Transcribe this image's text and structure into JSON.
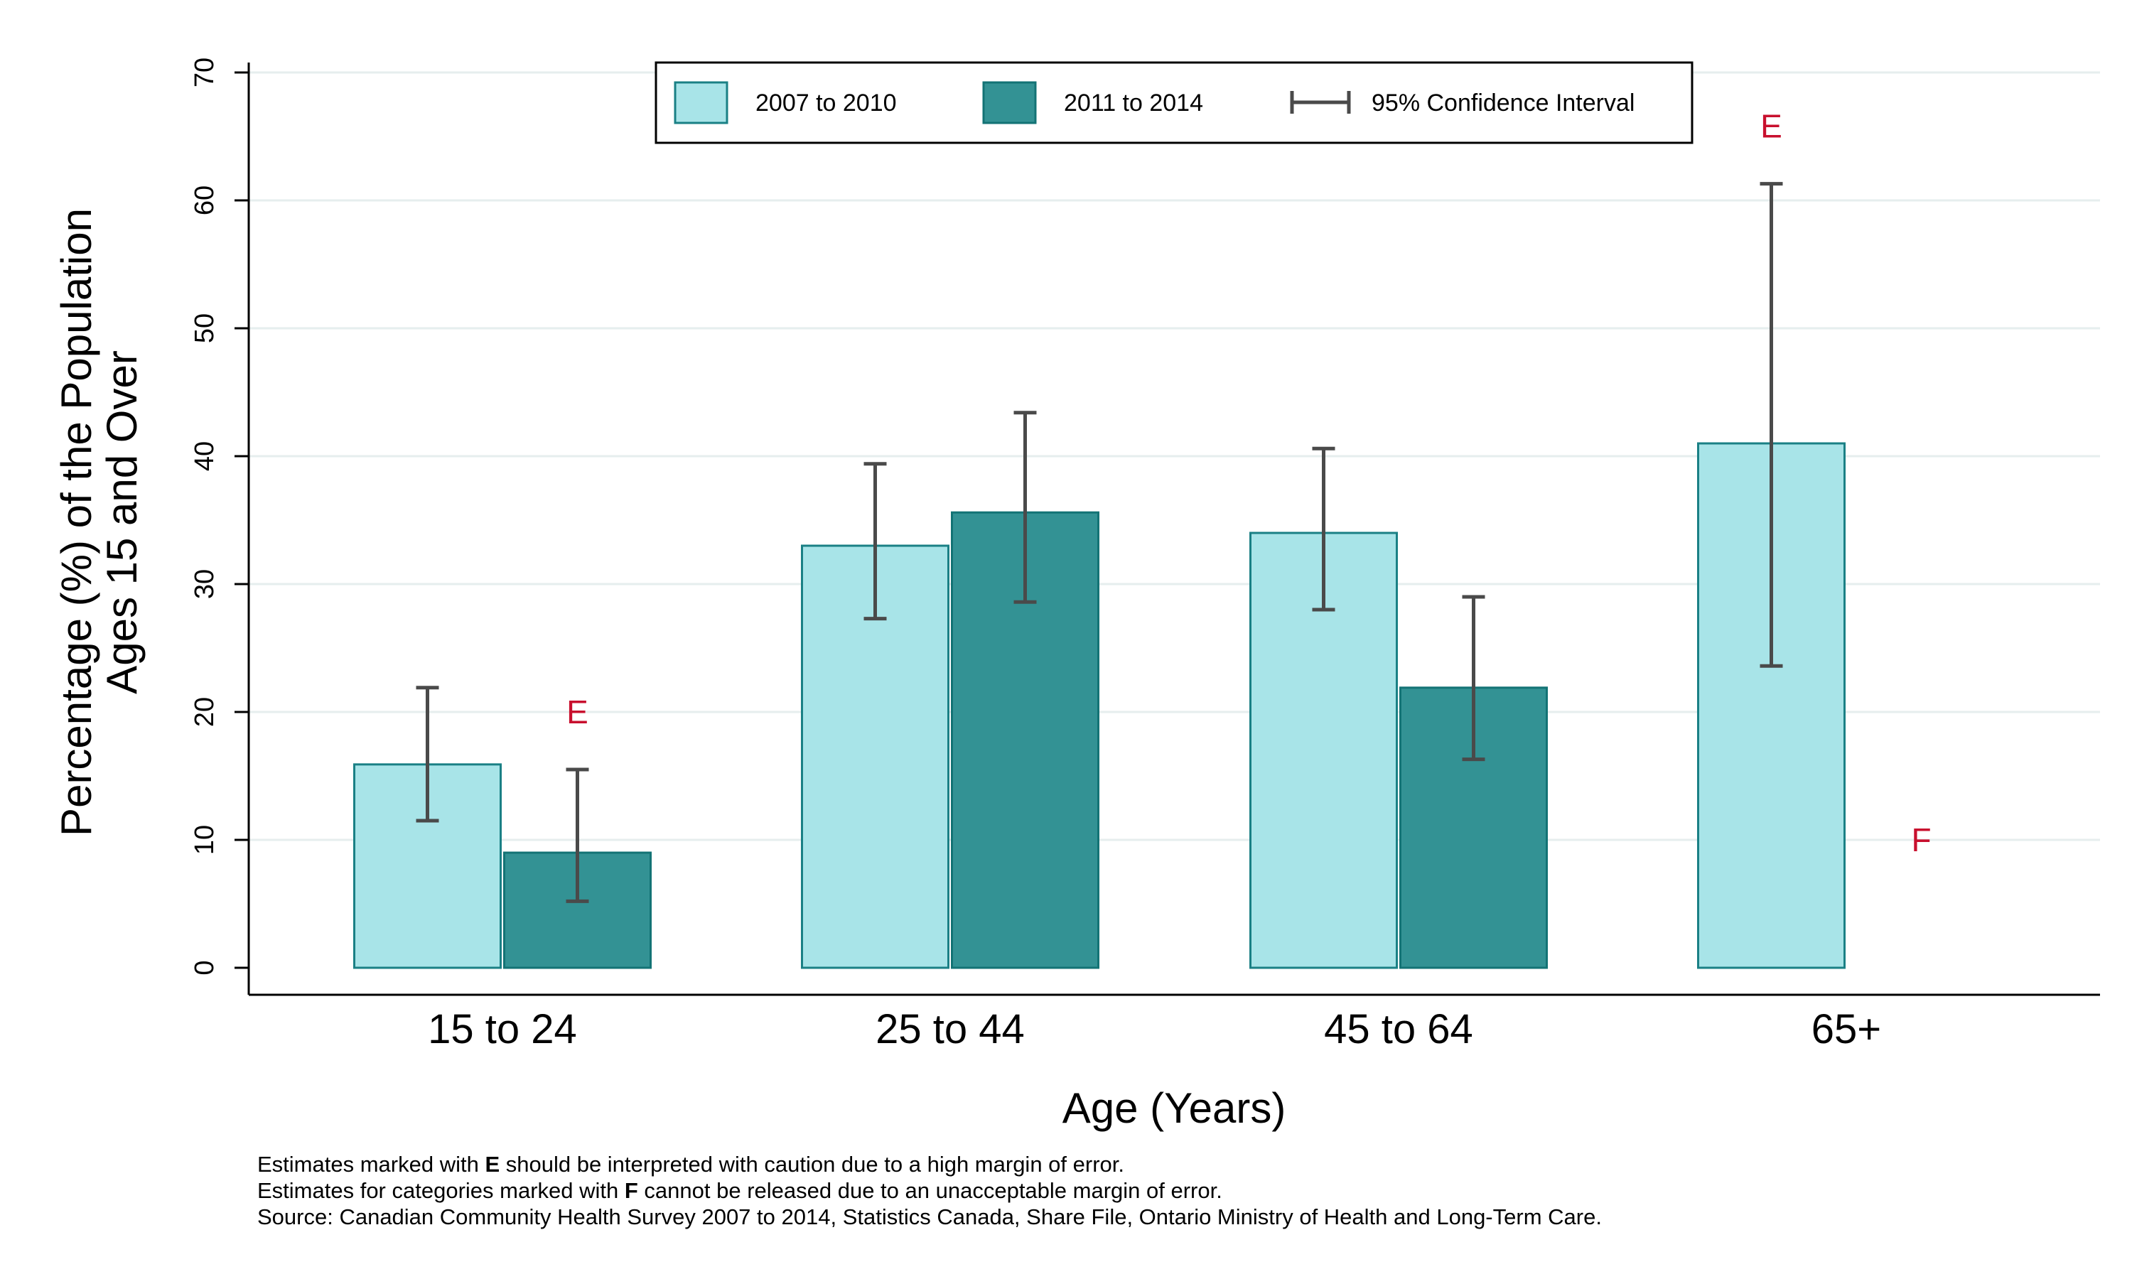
{
  "chart_data": {
    "type": "bar",
    "title": "",
    "xlabel": "Age (Years)",
    "ylabel_lines": [
      "Percentage (%) of the Population",
      "Ages 15 and Over"
    ],
    "ylim": [
      0,
      70
    ],
    "yticks": [
      0,
      10,
      20,
      30,
      40,
      50,
      60,
      70
    ],
    "grid": true,
    "categories": [
      "15 to 24",
      "25 to 44",
      "45 to 64",
      "65+"
    ],
    "series": [
      {
        "name": "2007 to 2010",
        "color": "#a8e4e8",
        "stroke": "#1a8085",
        "values": [
          15.9,
          33.0,
          34.0,
          41.0
        ],
        "ci_low": [
          11.5,
          27.3,
          28.0,
          23.6
        ],
        "ci_high": [
          21.9,
          39.4,
          40.6,
          61.3
        ],
        "flags": [
          "",
          "",
          "",
          "E"
        ]
      },
      {
        "name": "2011 to 2014",
        "color": "#339294",
        "stroke": "#137375",
        "values": [
          9.0,
          35.6,
          21.9,
          null
        ],
        "ci_low": [
          5.2,
          28.6,
          16.3,
          null
        ],
        "ci_high": [
          15.5,
          43.4,
          29.0,
          null
        ],
        "flags": [
          "E",
          "",
          "",
          "F"
        ]
      }
    ],
    "flag_color": "#c8102e",
    "ci_color": "#4a4a4a",
    "legend": {
      "placement": "top-center",
      "ci_label": "95% Confidence Interval"
    }
  },
  "footnotes": {
    "line1_pre": "Estimates marked with ",
    "line1_flag": "E",
    "line1_post": " should be interpreted with caution due to a high margin of error.",
    "line2_pre": "Estimates for categories marked with ",
    "line2_flag": "F",
    "line2_post": " cannot be released due to an unacceptable margin of error.",
    "source": "Source: Canadian Community Health Survey 2007 to 2014, Statistics Canada, Share File, Ontario Ministry of Health and Long-Term Care."
  }
}
